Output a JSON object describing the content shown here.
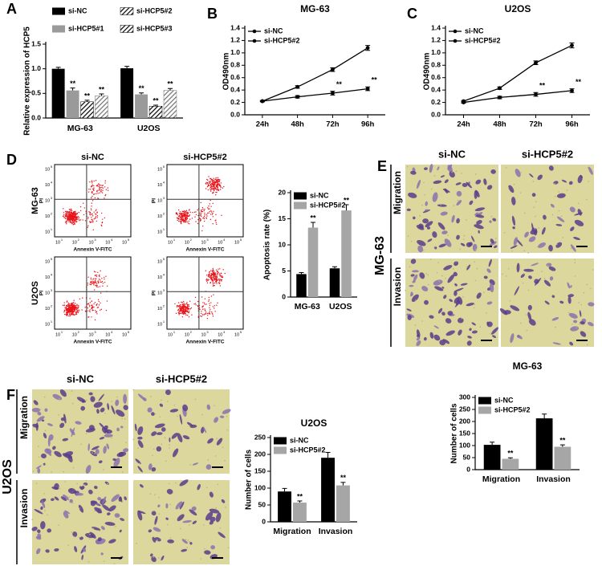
{
  "panels": {
    "letters": [
      "A",
      "B",
      "C",
      "D",
      "E",
      "F"
    ],
    "flow": {
      "columns": [
        "si-NC",
        "si-HCP5#2"
      ],
      "rows": [
        "MG-63",
        "U2OS"
      ],
      "x_label": "Annexin V-FITC",
      "y_label": "PI",
      "tick_base": "10",
      "tick_exponents": [
        "1",
        "2",
        "3",
        "4",
        "5"
      ]
    },
    "micrographs_E": {
      "cell_line": "MG-63",
      "columns": [
        "si-NC",
        "si-HCP5#2"
      ],
      "rows": [
        "Migration",
        "Invasion"
      ]
    },
    "micrographs_F": {
      "cell_line": "U2OS",
      "columns": [
        "si-NC",
        "si-HCP5#2"
      ],
      "rows": [
        "Migration",
        "Invasion"
      ]
    }
  },
  "chart_data": [
    {
      "type": "bar",
      "y_label": "Relative expression of HCP5",
      "categories": [
        "MG-63",
        "U2OS"
      ],
      "legend": "top",
      "series": [
        {
          "name": "si-NC",
          "color": "#000000",
          "values": [
            1.0,
            1.01
          ],
          "errors": [
            0.03,
            0.04
          ],
          "significance": [
            null,
            null
          ]
        },
        {
          "name": "si-HCP5#1",
          "color": "#9a9a9a",
          "values": [
            0.56,
            0.48
          ],
          "errors": [
            0.05,
            0.03
          ],
          "significance": [
            "**",
            "**"
          ]
        },
        {
          "name": "si-HCP5#2",
          "color": "#3a3a3a",
          "hatch": true,
          "values": [
            0.33,
            0.24
          ],
          "errors": [
            0.03,
            0.02
          ],
          "significance": [
            "**",
            "**"
          ]
        },
        {
          "name": "si-HCP5#3",
          "color": "#8a8a8a",
          "hatch": true,
          "values": [
            0.45,
            0.56
          ],
          "errors": [
            0.04,
            0.04
          ],
          "significance": [
            "**",
            "**"
          ]
        }
      ],
      "ylim": [
        0,
        1.5
      ],
      "yticks": [
        {
          "value": 0,
          "label": "0.0"
        },
        0.5,
        {
          "value": 1,
          "label": "1.0"
        },
        1.5
      ]
    },
    {
      "type": "line",
      "title": "MG-63",
      "y_label": "OD490nm",
      "categories": [
        "24h",
        "48h",
        "72h",
        "96h"
      ],
      "legend": "upper left",
      "series": [
        {
          "name": "si-NC",
          "color": "#000000",
          "values": [
            0.22,
            0.45,
            0.73,
            1.08
          ],
          "errors": [
            0.01,
            0.02,
            0.03,
            0.04
          ],
          "significance": [
            null,
            null,
            null,
            null
          ]
        },
        {
          "name": "si-HCP5#2",
          "color": "#000000",
          "values": [
            0.22,
            0.29,
            0.35,
            0.42
          ],
          "errors": [
            0.01,
            0.02,
            0.03,
            0.03
          ],
          "significance": [
            null,
            null,
            "**",
            "**"
          ]
        }
      ],
      "ylim": [
        0,
        1.4
      ],
      "yticks": [
        {
          "value": 0,
          "label": "0.0"
        },
        0.2,
        0.4,
        0.6,
        0.8,
        {
          "value": 1,
          "label": "1.0"
        },
        1.2,
        1.4
      ]
    },
    {
      "type": "line",
      "title": "U2OS",
      "y_label": "OD490nm",
      "categories": [
        "24h",
        "48h",
        "72h",
        "96h"
      ],
      "legend": "upper left",
      "series": [
        {
          "name": "si-NC",
          "color": "#000000",
          "values": [
            0.22,
            0.43,
            0.84,
            1.12
          ],
          "errors": [
            0.01,
            0.02,
            0.03,
            0.04
          ],
          "significance": [
            null,
            null,
            null,
            null
          ]
        },
        {
          "name": "si-HCP5#2",
          "color": "#000000",
          "values": [
            0.2,
            0.28,
            0.33,
            0.39
          ],
          "errors": [
            0.01,
            0.02,
            0.03,
            0.03
          ],
          "significance": [
            null,
            null,
            "**",
            "**"
          ]
        }
      ],
      "ylim": [
        0,
        1.4
      ],
      "yticks": [
        {
          "value": 0,
          "label": "0.0"
        },
        0.2,
        0.4,
        0.6,
        0.8,
        {
          "value": 1,
          "label": "1.0"
        },
        1.2,
        1.4
      ]
    },
    {
      "type": "bar",
      "y_label": "Apoptosis rate (%)",
      "categories": [
        "MG-63",
        "U2OS"
      ],
      "legend": "upper left",
      "series": [
        {
          "name": "si-NC",
          "color": "#000000",
          "values": [
            4.4,
            5.5
          ],
          "errors": [
            0.3,
            0.3
          ],
          "significance": [
            null,
            null
          ]
        },
        {
          "name": "si-HCP5#2",
          "color": "#a6a6a6",
          "values": [
            13.3,
            16.6
          ],
          "errors": [
            1.0,
            1.1
          ],
          "significance": [
            "**",
            "**"
          ]
        }
      ],
      "ylim": [
        0,
        20
      ],
      "yticks": [
        0,
        5,
        10,
        15,
        20
      ]
    },
    {
      "type": "bar",
      "title": "MG-63",
      "y_label": "Number of cells",
      "categories": [
        "Migration",
        "Invasion"
      ],
      "legend": "upper left",
      "series": [
        {
          "name": "si-NC",
          "color": "#000000",
          "values": [
            103,
            213
          ],
          "errors": [
            11,
            18
          ],
          "significance": [
            null,
            null
          ]
        },
        {
          "name": "si-HCP5#2",
          "color": "#a6a6a6",
          "values": [
            45,
            95
          ],
          "errors": [
            4,
            8
          ],
          "significance": [
            "**",
            "**"
          ]
        }
      ],
      "ylim": [
        0,
        300
      ],
      "yticks": [
        0,
        50,
        100,
        150,
        200,
        250,
        300
      ]
    },
    {
      "type": "bar",
      "title": "U2OS",
      "y_label": "Number of cells",
      "categories": [
        "Migration",
        "Invasion"
      ],
      "legend": "upper left",
      "series": [
        {
          "name": "si-NC",
          "color": "#000000",
          "values": [
            90,
            190
          ],
          "errors": [
            9,
            16
          ],
          "significance": [
            null,
            null
          ]
        },
        {
          "name": "si-HCP5#2",
          "color": "#a6a6a6",
          "values": [
            57,
            108
          ],
          "errors": [
            5,
            9
          ],
          "significance": [
            "**",
            "**"
          ]
        }
      ],
      "ylim": [
        0,
        250
      ],
      "yticks": [
        0,
        50,
        100,
        150,
        200,
        250
      ]
    }
  ]
}
